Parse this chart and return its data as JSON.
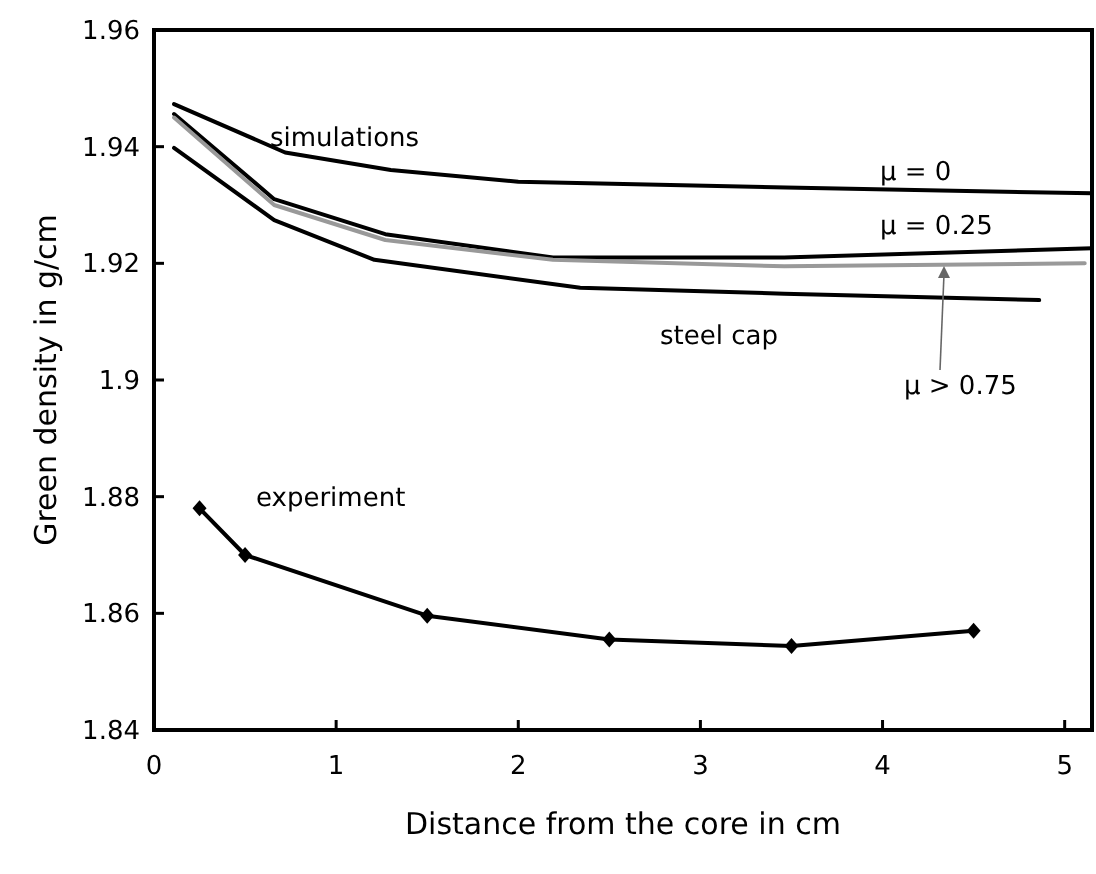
{
  "chart_data": {
    "type": "line",
    "xlabel": "Distance from the core in cm",
    "ylabel": "Green density in g/cm",
    "xlim": [
      0,
      5.15
    ],
    "xticks": [
      0,
      1,
      2,
      3,
      4,
      5
    ],
    "ylim": [
      1.84,
      1.96
    ],
    "yticks": [
      1.84,
      1.86,
      1.88,
      1.9,
      1.92,
      1.94,
      1.96
    ],
    "grid": false,
    "series": [
      {
        "name": "μ = 0",
        "color": "#000000",
        "marker": "none",
        "x": [
          0.11,
          0.72,
          1.3,
          2.0,
          3.47,
          5.15
        ],
        "values": [
          1.9473,
          1.939,
          1.936,
          1.934,
          1.933,
          1.932
        ]
      },
      {
        "name": "μ = 0.25",
        "color": "#000000",
        "marker": "none",
        "x": [
          0.11,
          0.66,
          1.27,
          2.19,
          3.46,
          5.15
        ],
        "values": [
          1.9456,
          1.931,
          1.925,
          1.921,
          1.921,
          1.9226
        ]
      },
      {
        "name": "μ > 0.75",
        "color": "#999999",
        "marker": "none",
        "x": [
          0.11,
          0.66,
          1.27,
          2.19,
          3.46,
          5.11
        ],
        "values": [
          1.945,
          1.93,
          1.924,
          1.9206,
          1.9195,
          1.92
        ]
      },
      {
        "name": "steel cap",
        "color": "#000000",
        "marker": "none",
        "x": [
          0.11,
          0.66,
          1.21,
          2.34,
          3.46,
          4.86
        ],
        "values": [
          1.9398,
          1.9274,
          1.9206,
          1.9158,
          1.9148,
          1.9137
        ]
      },
      {
        "name": "experiment",
        "color": "#000000",
        "marker": "diamond",
        "x": [
          0.25,
          0.5,
          1.5,
          2.5,
          3.5,
          4.5
        ],
        "values": [
          1.878,
          1.87,
          1.8596,
          1.8555,
          1.8544,
          1.857
        ]
      }
    ],
    "annotations": [
      "simulations"
    ]
  }
}
